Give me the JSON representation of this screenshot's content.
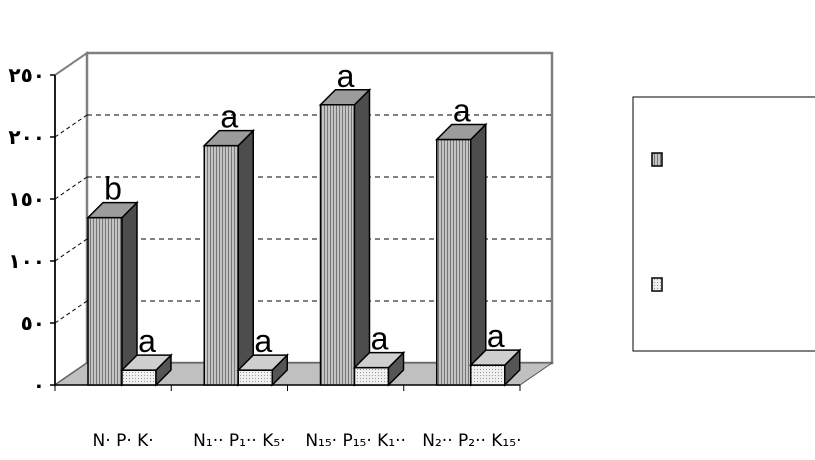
{
  "chart_data": {
    "type": "bar",
    "style": "3d-column",
    "categories": [
      "N· P· K·",
      "N₁·· P₁·· K₅·",
      "N₁₅· P₁₅· K₁··",
      "N₂·· P₂·· K₁₅·"
    ],
    "series": [
      {
        "values": [
          135,
          193,
          226,
          198
        ],
        "labels": [
          "b",
          "a",
          "a",
          "a"
        ],
        "pattern": "vertical-lines",
        "color": "#b0b0b0"
      },
      {
        "values": [
          12,
          12,
          14,
          16
        ],
        "labels": [
          "a",
          "a",
          "a",
          "a"
        ],
        "pattern": "dots",
        "color": "#e4e4e4"
      }
    ],
    "yticks": [
      "٠",
      "٥٠",
      "١٠٠",
      "١٥٠",
      "٢٠٠",
      "٢٥٠"
    ],
    "ylim": [
      0,
      250
    ],
    "grid": "horizontal-dashed",
    "legend": {
      "position": "right"
    }
  }
}
